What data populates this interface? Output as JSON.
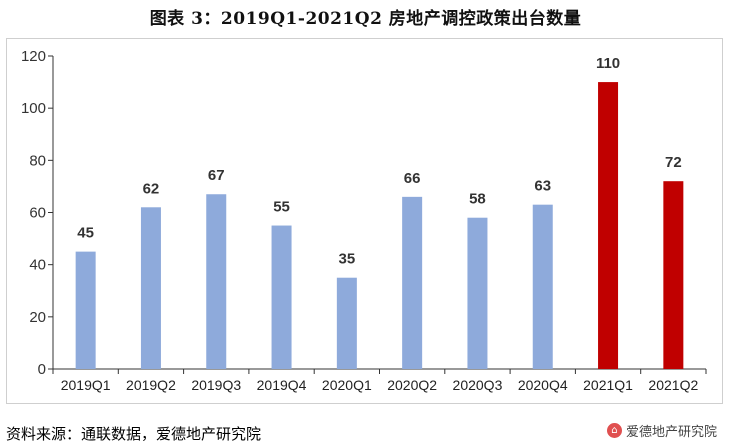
{
  "title": "图表 3：2019Q1-2021Q2 房地产调控政策出台数量",
  "source": "资料来源：通联数据，爱德地产研究院",
  "watermark": {
    "text": "爱德地产研究院",
    "icon": "logo-icon"
  },
  "colors": {
    "normal": "#8eaadb",
    "highlight": "#c00000",
    "axis": "#333333",
    "frame": "#cfcfcf"
  },
  "chart_data": {
    "type": "bar",
    "title": "图表 3：2019Q1-2021Q2 房地产调控政策出台数量",
    "xlabel": "",
    "ylabel": "",
    "categories": [
      "2019Q1",
      "2019Q2",
      "2019Q3",
      "2019Q4",
      "2020Q1",
      "2020Q2",
      "2020Q3",
      "2020Q4",
      "2021Q1",
      "2021Q2"
    ],
    "values": [
      45,
      62,
      67,
      55,
      35,
      66,
      58,
      63,
      110,
      72
    ],
    "highlight": [
      false,
      false,
      false,
      false,
      false,
      false,
      false,
      false,
      true,
      true
    ],
    "ylim": [
      0,
      120
    ],
    "yticks": [
      0,
      20,
      40,
      60,
      80,
      100,
      120
    ],
    "grid": false,
    "data_labels": true
  }
}
